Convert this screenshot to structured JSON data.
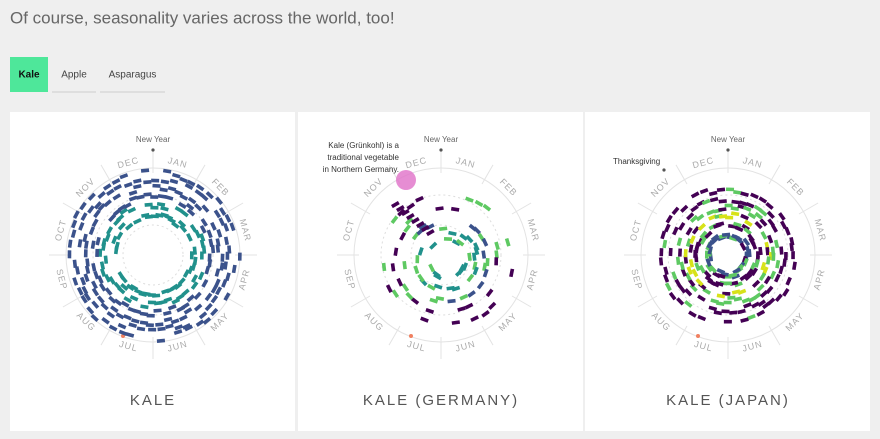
{
  "header": {
    "title": "Of course, seasonality varies across the world, too!"
  },
  "tabs": [
    {
      "label": "Kale",
      "active": true
    },
    {
      "label": "Apple",
      "active": false
    },
    {
      "label": "Asparagus",
      "active": false
    }
  ],
  "months": [
    "JAN",
    "FEB",
    "MAR",
    "APR",
    "MAY",
    "JUN",
    "JUL",
    "AUG",
    "SEP",
    "OCT",
    "NOV",
    "DEC"
  ],
  "new_year": "New Year",
  "panels": [
    {
      "title": "KALE"
    },
    {
      "title": "KALE (GERMANY)",
      "annotation": [
        "Kale (Grünkohl) is a",
        "traditional vegetable",
        "in Northern Germany."
      ]
    },
    {
      "title": "KALE (JAPAN)",
      "annotation": [
        "Thanksgiving"
      ]
    }
  ]
}
